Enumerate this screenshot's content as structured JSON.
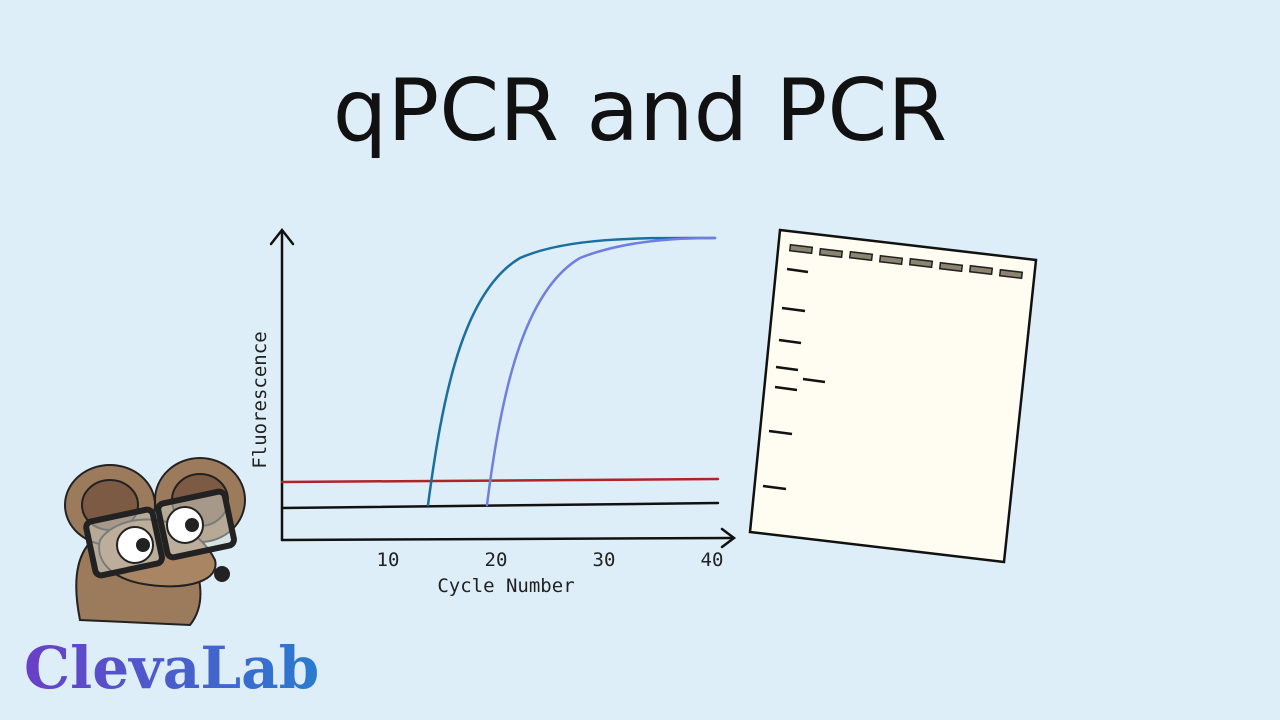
{
  "title": "qPCR and PCR",
  "chart": {
    "x_label": "Cycle Number",
    "y_label": "Fluorescence",
    "x_ticks": [
      "10",
      "20",
      "30",
      "40"
    ]
  },
  "logo": "ClevaLab"
}
